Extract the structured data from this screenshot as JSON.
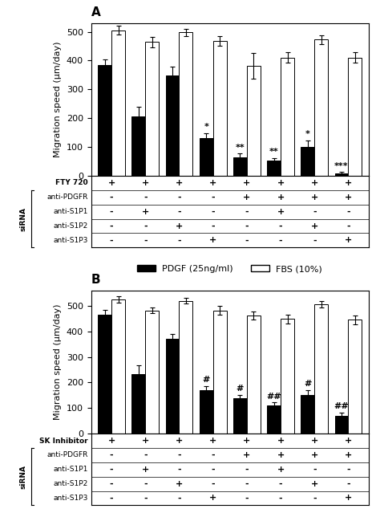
{
  "chart_data": [
    {
      "type": "bar",
      "title": "A",
      "ylabel": "Migration speed (μm/day)",
      "categories": [
        null,
        null,
        null,
        null,
        null,
        null,
        null,
        null
      ],
      "ylim": [
        0,
        530
      ],
      "yticks": [
        0,
        100,
        200,
        300,
        400,
        500
      ],
      "legend": "center",
      "series": [
        {
          "name": "PDGF (25ng/ml)",
          "color": "black",
          "values": [
            385,
            205,
            348,
            130,
            65,
            52,
            100,
            8
          ],
          "errors": [
            18,
            35,
            30,
            18,
            12,
            10,
            22,
            5
          ],
          "significance": [
            null,
            null,
            null,
            "*",
            "**",
            "**",
            "*",
            "***"
          ]
        },
        {
          "name": "FBS (10%)",
          "color": "white",
          "values": [
            505,
            465,
            498,
            468,
            382,
            410,
            473,
            410
          ],
          "errors": [
            15,
            18,
            12,
            18,
            45,
            18,
            15,
            18
          ]
        }
      ],
      "table": {
        "label": "siRNA",
        "rows": [
          "FTY 720",
          "anti-PDGFR",
          "anti-S1P1",
          "anti-S1P2",
          "anti-S1P3"
        ],
        "cells": [
          [
            "+",
            "+",
            "+",
            "+",
            "+",
            "+",
            "+",
            "+"
          ],
          [
            "-",
            "-",
            "-",
            "-",
            "+",
            "+",
            "+",
            "+"
          ],
          [
            "-",
            "+",
            "-",
            "-",
            "-",
            "+",
            "-",
            "-"
          ],
          [
            "-",
            "-",
            "+",
            "-",
            "-",
            "-",
            "+",
            "-"
          ],
          [
            "-",
            "-",
            "-",
            "+",
            "-",
            "-",
            "-",
            "+"
          ]
        ]
      }
    },
    {
      "type": "bar",
      "title": "B",
      "ylabel": "Migration speed (μm/day)",
      "categories": [
        null,
        null,
        null,
        null,
        null,
        null,
        null,
        null
      ],
      "ylim": [
        0,
        560
      ],
      "yticks": [
        0,
        100,
        200,
        300,
        400,
        500
      ],
      "series": [
        {
          "name": "PDGF (25ng/ml)",
          "color": "black",
          "values": [
            465,
            232,
            372,
            170,
            140,
            110,
            152,
            70
          ],
          "errors": [
            18,
            35,
            18,
            15,
            12,
            12,
            18,
            12
          ],
          "significance": [
            null,
            null,
            null,
            "#",
            "#",
            "##",
            "#",
            "##"
          ]
        },
        {
          "name": "FBS (10%)",
          "color": "white",
          "values": [
            525,
            482,
            520,
            482,
            462,
            448,
            505,
            445
          ],
          "errors": [
            12,
            12,
            12,
            18,
            15,
            18,
            12,
            18
          ]
        }
      ],
      "table": {
        "label": "siRNA",
        "rows": [
          "SK Inhibitor",
          "anti-PDGFR",
          "anti-S1P1",
          "anti-S1P2",
          "anti-S1P3"
        ],
        "cells": [
          [
            "+",
            "+",
            "+",
            "+",
            "+",
            "+",
            "+",
            "+"
          ],
          [
            "-",
            "-",
            "-",
            "-",
            "+",
            "+",
            "+",
            "+"
          ],
          [
            "-",
            "+",
            "-",
            "-",
            "-",
            "+",
            "-",
            "-"
          ],
          [
            "-",
            "-",
            "+",
            "-",
            "-",
            "-",
            "+",
            "-"
          ],
          [
            "-",
            "-",
            "-",
            "+",
            "-",
            "-",
            "-",
            "+"
          ]
        ]
      }
    }
  ]
}
